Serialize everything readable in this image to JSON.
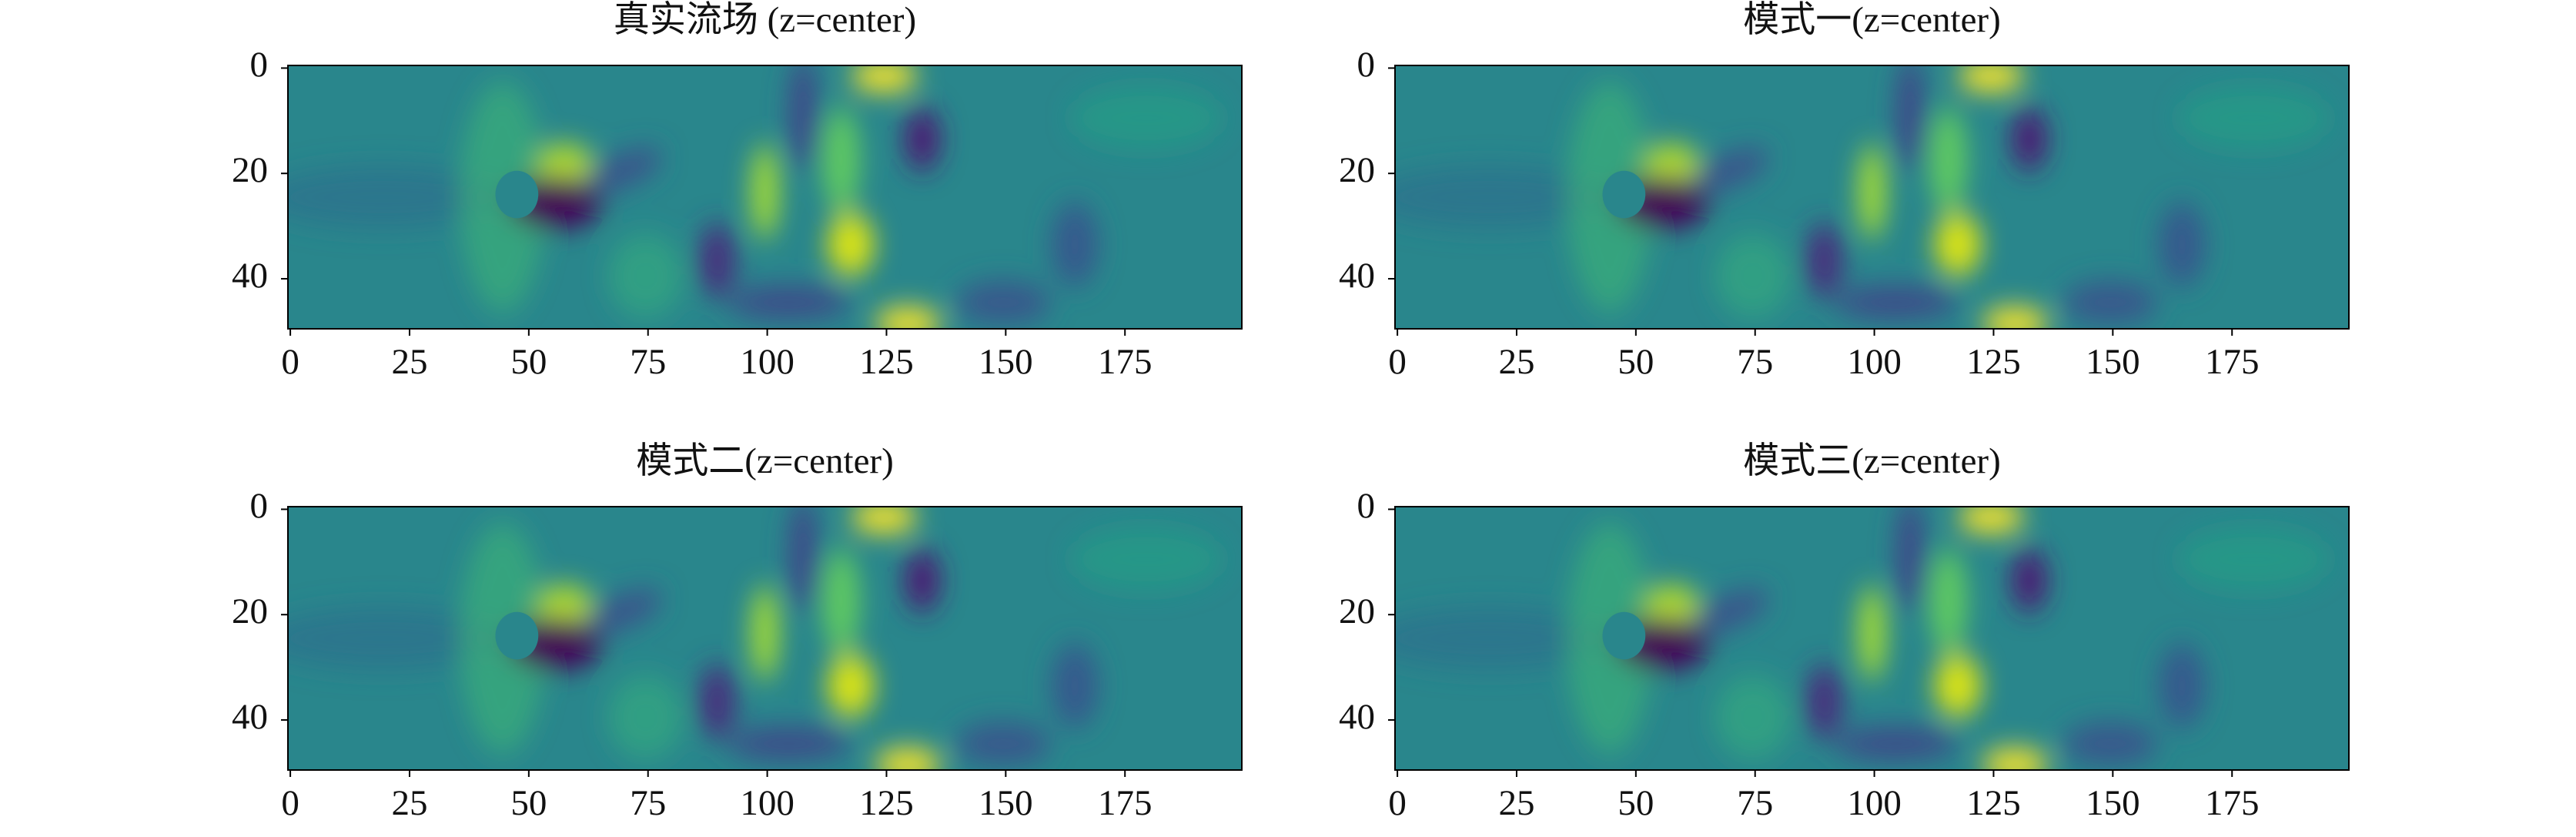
{
  "chart_data": [
    {
      "type": "heatmap",
      "title": "真实流场 (z=center)",
      "xlim": [
        -0.5,
        199.5
      ],
      "ylim": [
        49.5,
        -0.5
      ],
      "xticks": [
        0,
        25,
        50,
        75,
        100,
        125,
        150,
        175
      ],
      "yticks": [
        0,
        20,
        40
      ]
    },
    {
      "type": "heatmap",
      "title": "模式一(z=center)",
      "xlim": [
        -0.5,
        199.5
      ],
      "ylim": [
        49.5,
        -0.5
      ],
      "xticks": [
        0,
        25,
        50,
        75,
        100,
        125,
        150,
        175
      ],
      "yticks": [
        0,
        20,
        40
      ]
    },
    {
      "type": "heatmap",
      "title": "模式二(z=center)",
      "xlim": [
        -0.5,
        199.5
      ],
      "ylim": [
        49.5,
        -0.5
      ],
      "xticks": [
        0,
        25,
        50,
        75,
        100,
        125,
        150,
        175
      ],
      "yticks": [
        0,
        20,
        40
      ]
    },
    {
      "type": "heatmap",
      "title": "模式三(z=center)",
      "xlim": [
        -0.5,
        199.5
      ],
      "ylim": [
        49.5,
        -0.5
      ],
      "xticks": [
        0,
        25,
        50,
        75,
        100,
        125,
        150,
        175
      ],
      "yticks": [
        0,
        20,
        40
      ]
    }
  ]
}
